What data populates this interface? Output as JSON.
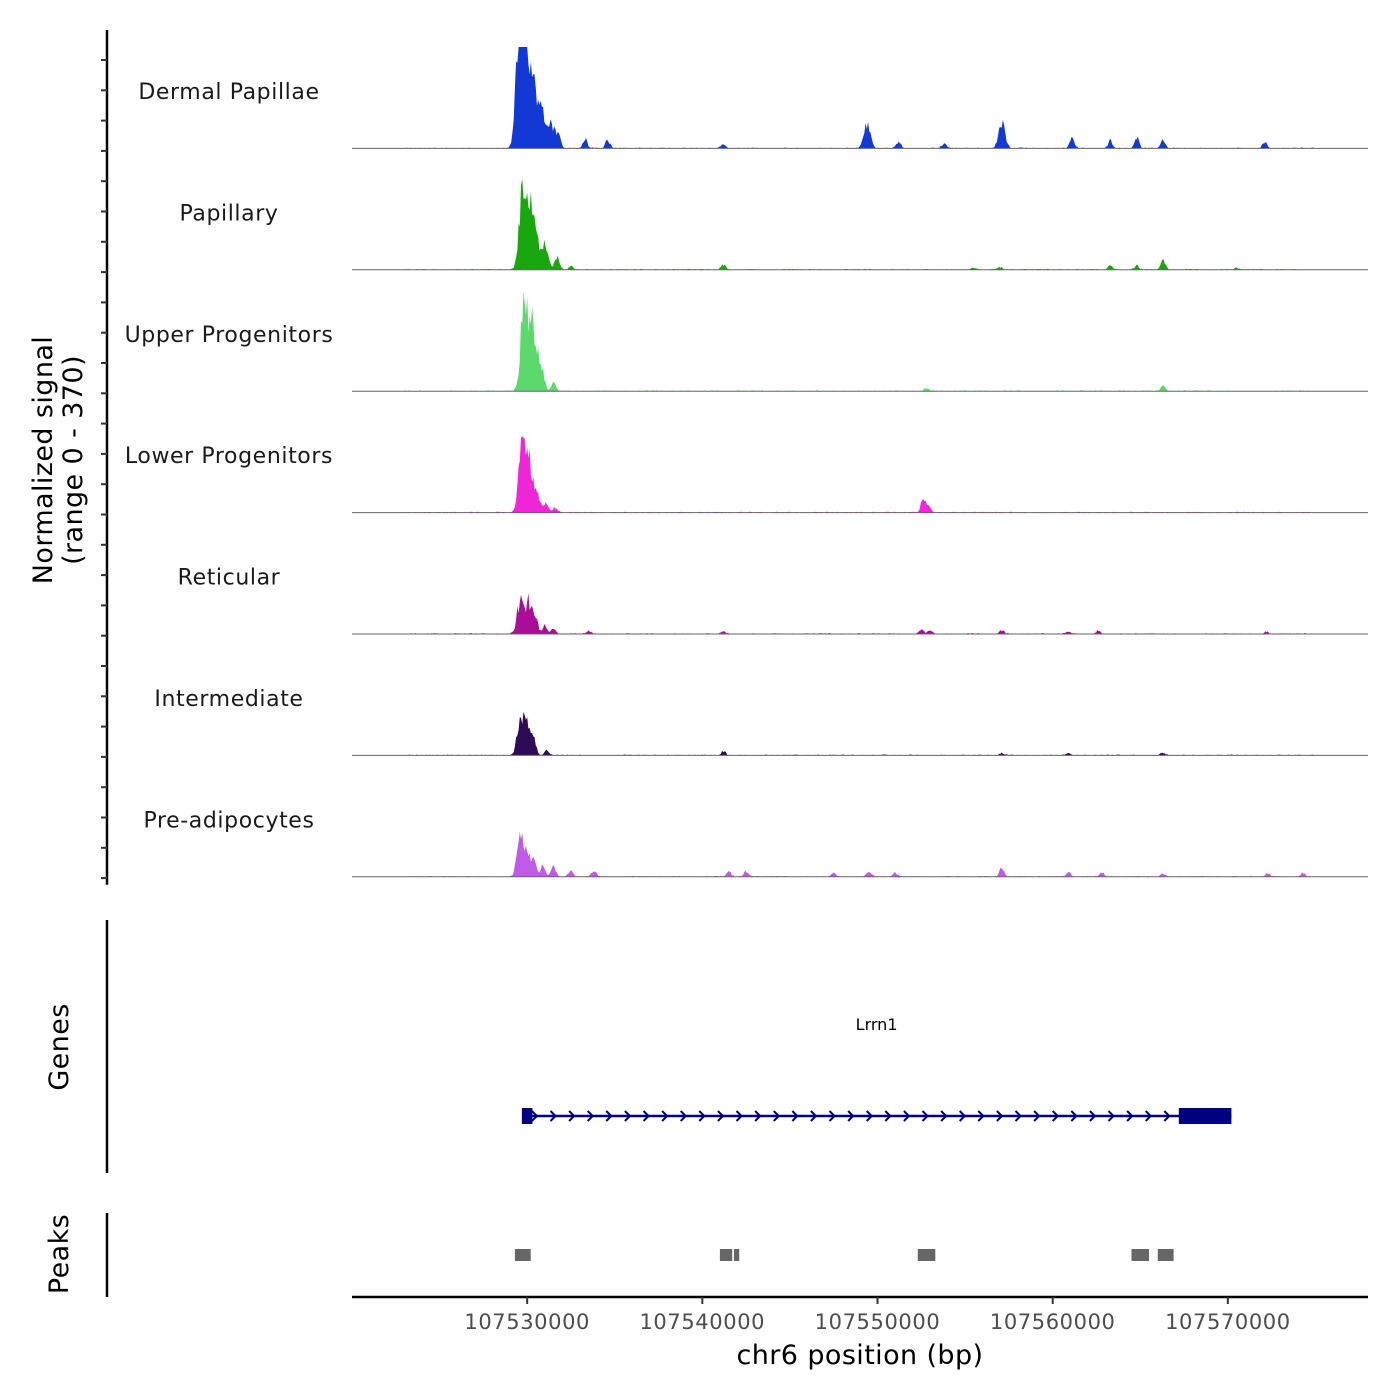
{
  "chart_data": {
    "type": "area",
    "title": "",
    "chromosome": "chr6",
    "xlabel": "chr6 position (bp)",
    "ylabel": "Normalized signal",
    "ylabel_range": "(range 0 - 370)",
    "xlim": [
      107520000,
      107578000
    ],
    "ylim": [
      0,
      370
    ],
    "x_ticks": [
      107530000,
      107540000,
      107550000,
      107560000,
      107570000
    ],
    "x_tick_labels": [
      "107530000",
      "107540000",
      "107550000",
      "107560000",
      "107570000"
    ],
    "signal_extent": [
      107523000,
      107575000
    ],
    "tracks": [
      {
        "name": "Dermal Papillae",
        "color": "#1239d6",
        "peaks": [
          [
            107529500,
            370
          ],
          [
            107529700,
            300
          ],
          [
            107530000,
            280
          ],
          [
            107530250,
            230
          ],
          [
            107530550,
            160
          ],
          [
            107530900,
            130
          ],
          [
            107531400,
            110
          ],
          [
            107531800,
            50
          ],
          [
            107533300,
            45
          ],
          [
            107534600,
            38
          ],
          [
            107541200,
            18
          ],
          [
            107549400,
            115
          ],
          [
            107551200,
            30
          ],
          [
            107553800,
            25
          ],
          [
            107557100,
            120
          ],
          [
            107561100,
            45
          ],
          [
            107563300,
            35
          ],
          [
            107564800,
            55
          ],
          [
            107566300,
            40
          ],
          [
            107572100,
            28
          ]
        ]
      },
      {
        "name": "Papillary",
        "color": "#18a80e",
        "peaks": [
          [
            107529700,
            320
          ],
          [
            107530100,
            330
          ],
          [
            107530500,
            170
          ],
          [
            107531000,
            110
          ],
          [
            107531700,
            60
          ],
          [
            107532500,
            15
          ],
          [
            107541200,
            25
          ],
          [
            107555500,
            10
          ],
          [
            107557000,
            12
          ],
          [
            107563300,
            18
          ],
          [
            107564800,
            20
          ],
          [
            107566300,
            45
          ],
          [
            107570500,
            8
          ]
        ]
      },
      {
        "name": "Upper Progenitors",
        "color": "#5cd96c",
        "peaks": [
          [
            107529800,
            365
          ],
          [
            107530200,
            300
          ],
          [
            107530550,
            160
          ],
          [
            107530900,
            70
          ],
          [
            107531500,
            35
          ],
          [
            107552800,
            12
          ],
          [
            107566300,
            25
          ]
        ]
      },
      {
        "name": "Lower Progenitors",
        "color": "#ef27d8",
        "peaks": [
          [
            107529700,
            290
          ],
          [
            107530100,
            230
          ],
          [
            107530550,
            110
          ],
          [
            107531100,
            40
          ],
          [
            107531600,
            22
          ],
          [
            107552600,
            60
          ],
          [
            107552900,
            35
          ]
        ]
      },
      {
        "name": "Reticular",
        "color": "#a80e96",
        "peaks": [
          [
            107529600,
            150
          ],
          [
            107530100,
            150
          ],
          [
            107530500,
            70
          ],
          [
            107531000,
            40
          ],
          [
            107531500,
            25
          ],
          [
            107533500,
            14
          ],
          [
            107541200,
            10
          ],
          [
            107552500,
            20
          ],
          [
            107553000,
            15
          ],
          [
            107557100,
            18
          ],
          [
            107560900,
            12
          ],
          [
            107562600,
            14
          ],
          [
            107572200,
            10
          ]
        ]
      },
      {
        "name": "Intermediate",
        "color": "#2e0a57",
        "peaks": [
          [
            107529600,
            145
          ],
          [
            107530000,
            150
          ],
          [
            107530400,
            60
          ],
          [
            107531100,
            25
          ],
          [
            107541200,
            20
          ],
          [
            107557100,
            10
          ],
          [
            107560900,
            10
          ],
          [
            107566300,
            12
          ]
        ]
      },
      {
        "name": "Pre-adipocytes",
        "color": "#c05ae8",
        "peaks": [
          [
            107529600,
            170
          ],
          [
            107530000,
            110
          ],
          [
            107530400,
            80
          ],
          [
            107530900,
            60
          ],
          [
            107531500,
            45
          ],
          [
            107532500,
            30
          ],
          [
            107533800,
            28
          ],
          [
            107541500,
            22
          ],
          [
            107542500,
            25
          ],
          [
            107547500,
            18
          ],
          [
            107549500,
            22
          ],
          [
            107551000,
            18
          ],
          [
            107557100,
            40
          ],
          [
            107560900,
            20
          ],
          [
            107562800,
            18
          ],
          [
            107566300,
            15
          ],
          [
            107572300,
            15
          ],
          [
            107574300,
            18
          ]
        ]
      }
    ],
    "genes": [
      {
        "name": "Lrrn1",
        "start": 107529700,
        "end": 107570200,
        "strand": "+",
        "color": "#000080",
        "exons": [
          [
            107529700,
            107530300
          ],
          [
            107567200,
            107570200
          ]
        ]
      }
    ],
    "peaks_track": {
      "label": "Peaks",
      "color": "#666666",
      "regions": [
        [
          107529300,
          107530200
        ],
        [
          107541000,
          107541700
        ],
        [
          107541800,
          107542100
        ],
        [
          107552300,
          107553300
        ],
        [
          107564500,
          107565500
        ],
        [
          107566000,
          107566900
        ]
      ]
    },
    "genes_track_label": "Genes"
  }
}
